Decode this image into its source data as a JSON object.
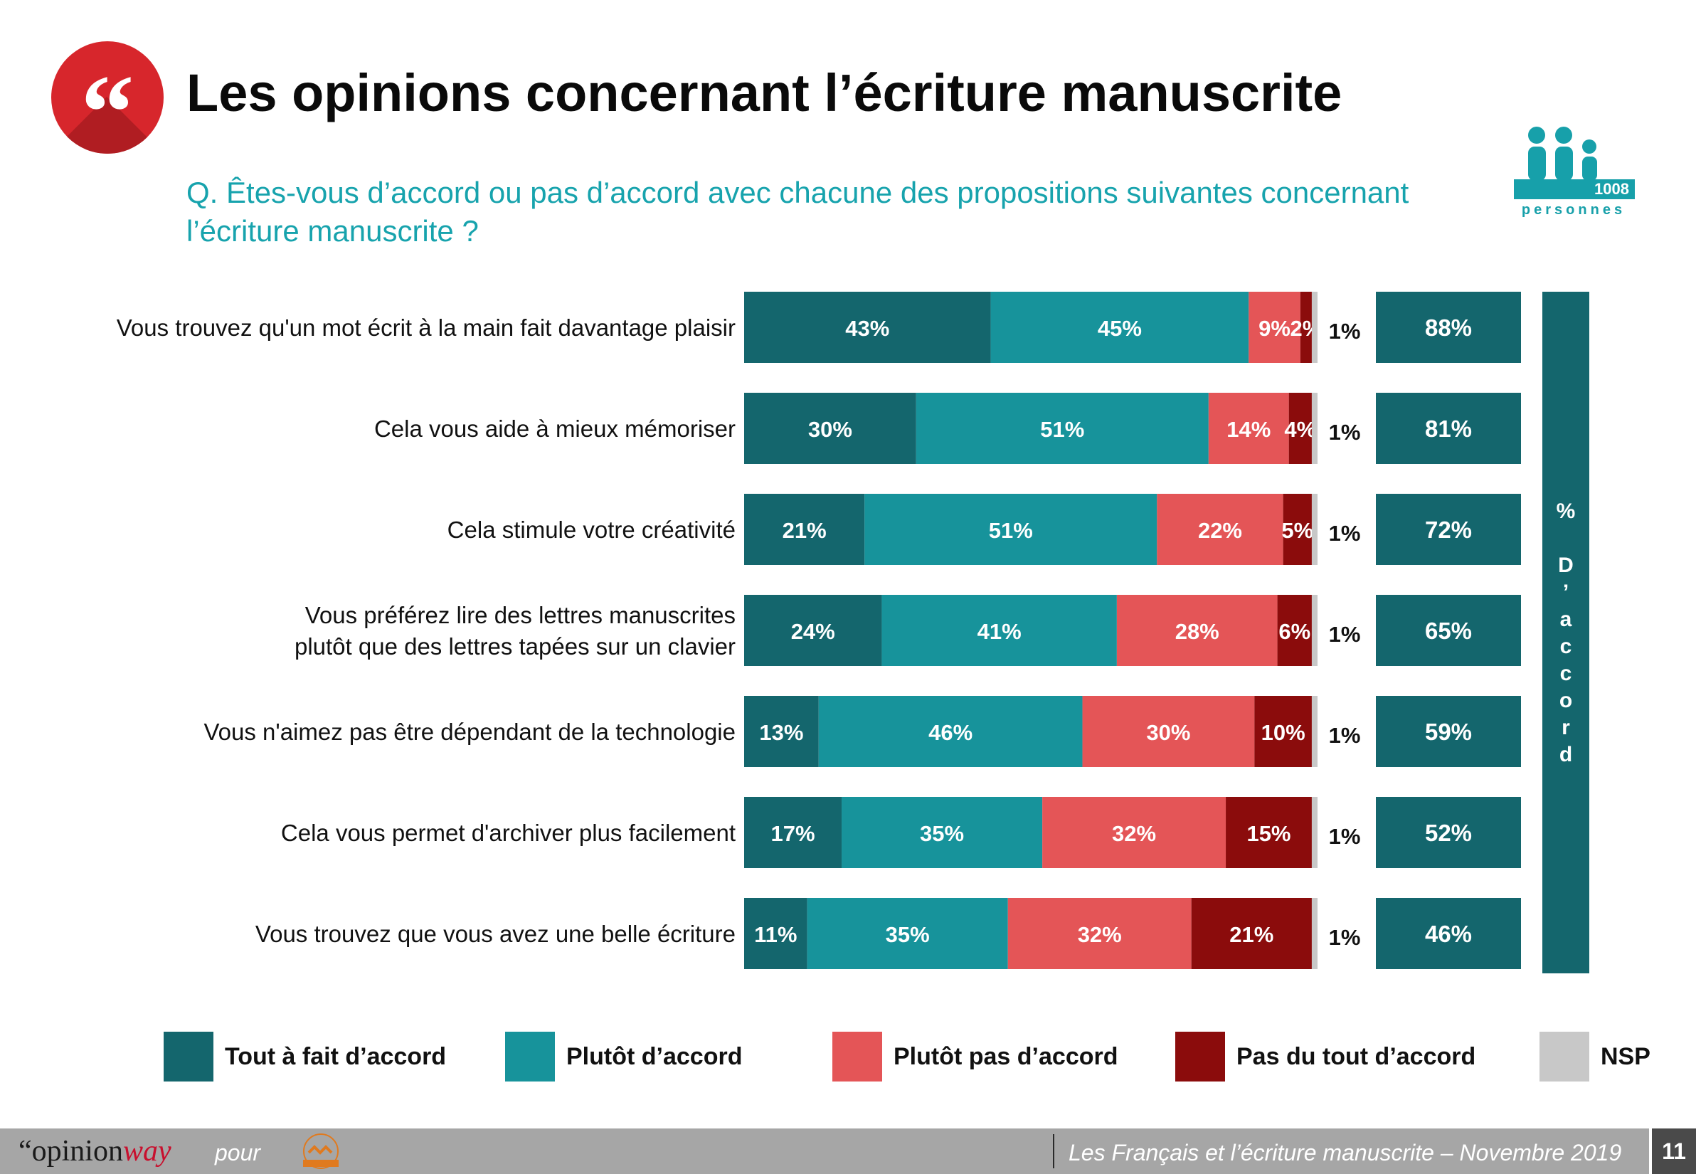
{
  "header": {
    "quote_glyph": "“",
    "title": "Les opinions concernant l’écriture manuscrite",
    "question": "Q. Êtes-vous d’accord ou pas d’accord avec chacune des propositions suivantes concernant l’écriture manuscrite ?",
    "sample_count": "1008",
    "sample_label": "personnes",
    "accent_color": "#d7262c",
    "question_color": "#17a3ad"
  },
  "chart_data": {
    "type": "bar",
    "orientation": "horizontal",
    "stacked": true,
    "xlim": [
      0,
      100
    ],
    "unit": "%",
    "categories": [
      "Vous trouvez qu'un mot écrit à la main fait davantage plaisir",
      "Cela vous aide à mieux mémoriser",
      "Cela stimule votre créativité",
      "Vous préférez lire des lettres manuscrites plutôt que des lettres tapées sur un clavier",
      "Vous n'aimez pas être dépendant de la technologie",
      "Cela vous permet d'archiver plus facilement",
      "Vous trouvez que vous avez une belle écriture"
    ],
    "series": [
      {
        "name": "Tout à fait d’accord",
        "color": "#14666d",
        "values": [
          43,
          30,
          21,
          24,
          13,
          17,
          11
        ]
      },
      {
        "name": "Plutôt d’accord",
        "color": "#17939b",
        "values": [
          45,
          51,
          51,
          41,
          46,
          35,
          35
        ]
      },
      {
        "name": "Plutôt pas d’accord",
        "color": "#e45557",
        "values": [
          9,
          14,
          22,
          28,
          30,
          32,
          32
        ]
      },
      {
        "name": "Pas du tout d’accord",
        "color": "#8b0c0c",
        "values": [
          2,
          4,
          5,
          6,
          10,
          15,
          21
        ]
      },
      {
        "name": "NSP",
        "color": "#c8c8c8",
        "values": [
          1,
          1,
          1,
          1,
          1,
          1,
          1
        ]
      }
    ],
    "nsp_labels": [
      "1%",
      "1%",
      "1%",
      "1%",
      "1%",
      "1%",
      "1%"
    ],
    "accord_totals": [
      88,
      81,
      72,
      65,
      59,
      52,
      46
    ],
    "accord_title": "% D’accord",
    "legend_position": "bottom"
  },
  "footer": {
    "brand_prefix": "“opinion",
    "brand_suffix": "way",
    "pour": "pour",
    "caption": "Les Français et l’écriture manuscrite – Novembre 2019",
    "page_number": "11"
  }
}
